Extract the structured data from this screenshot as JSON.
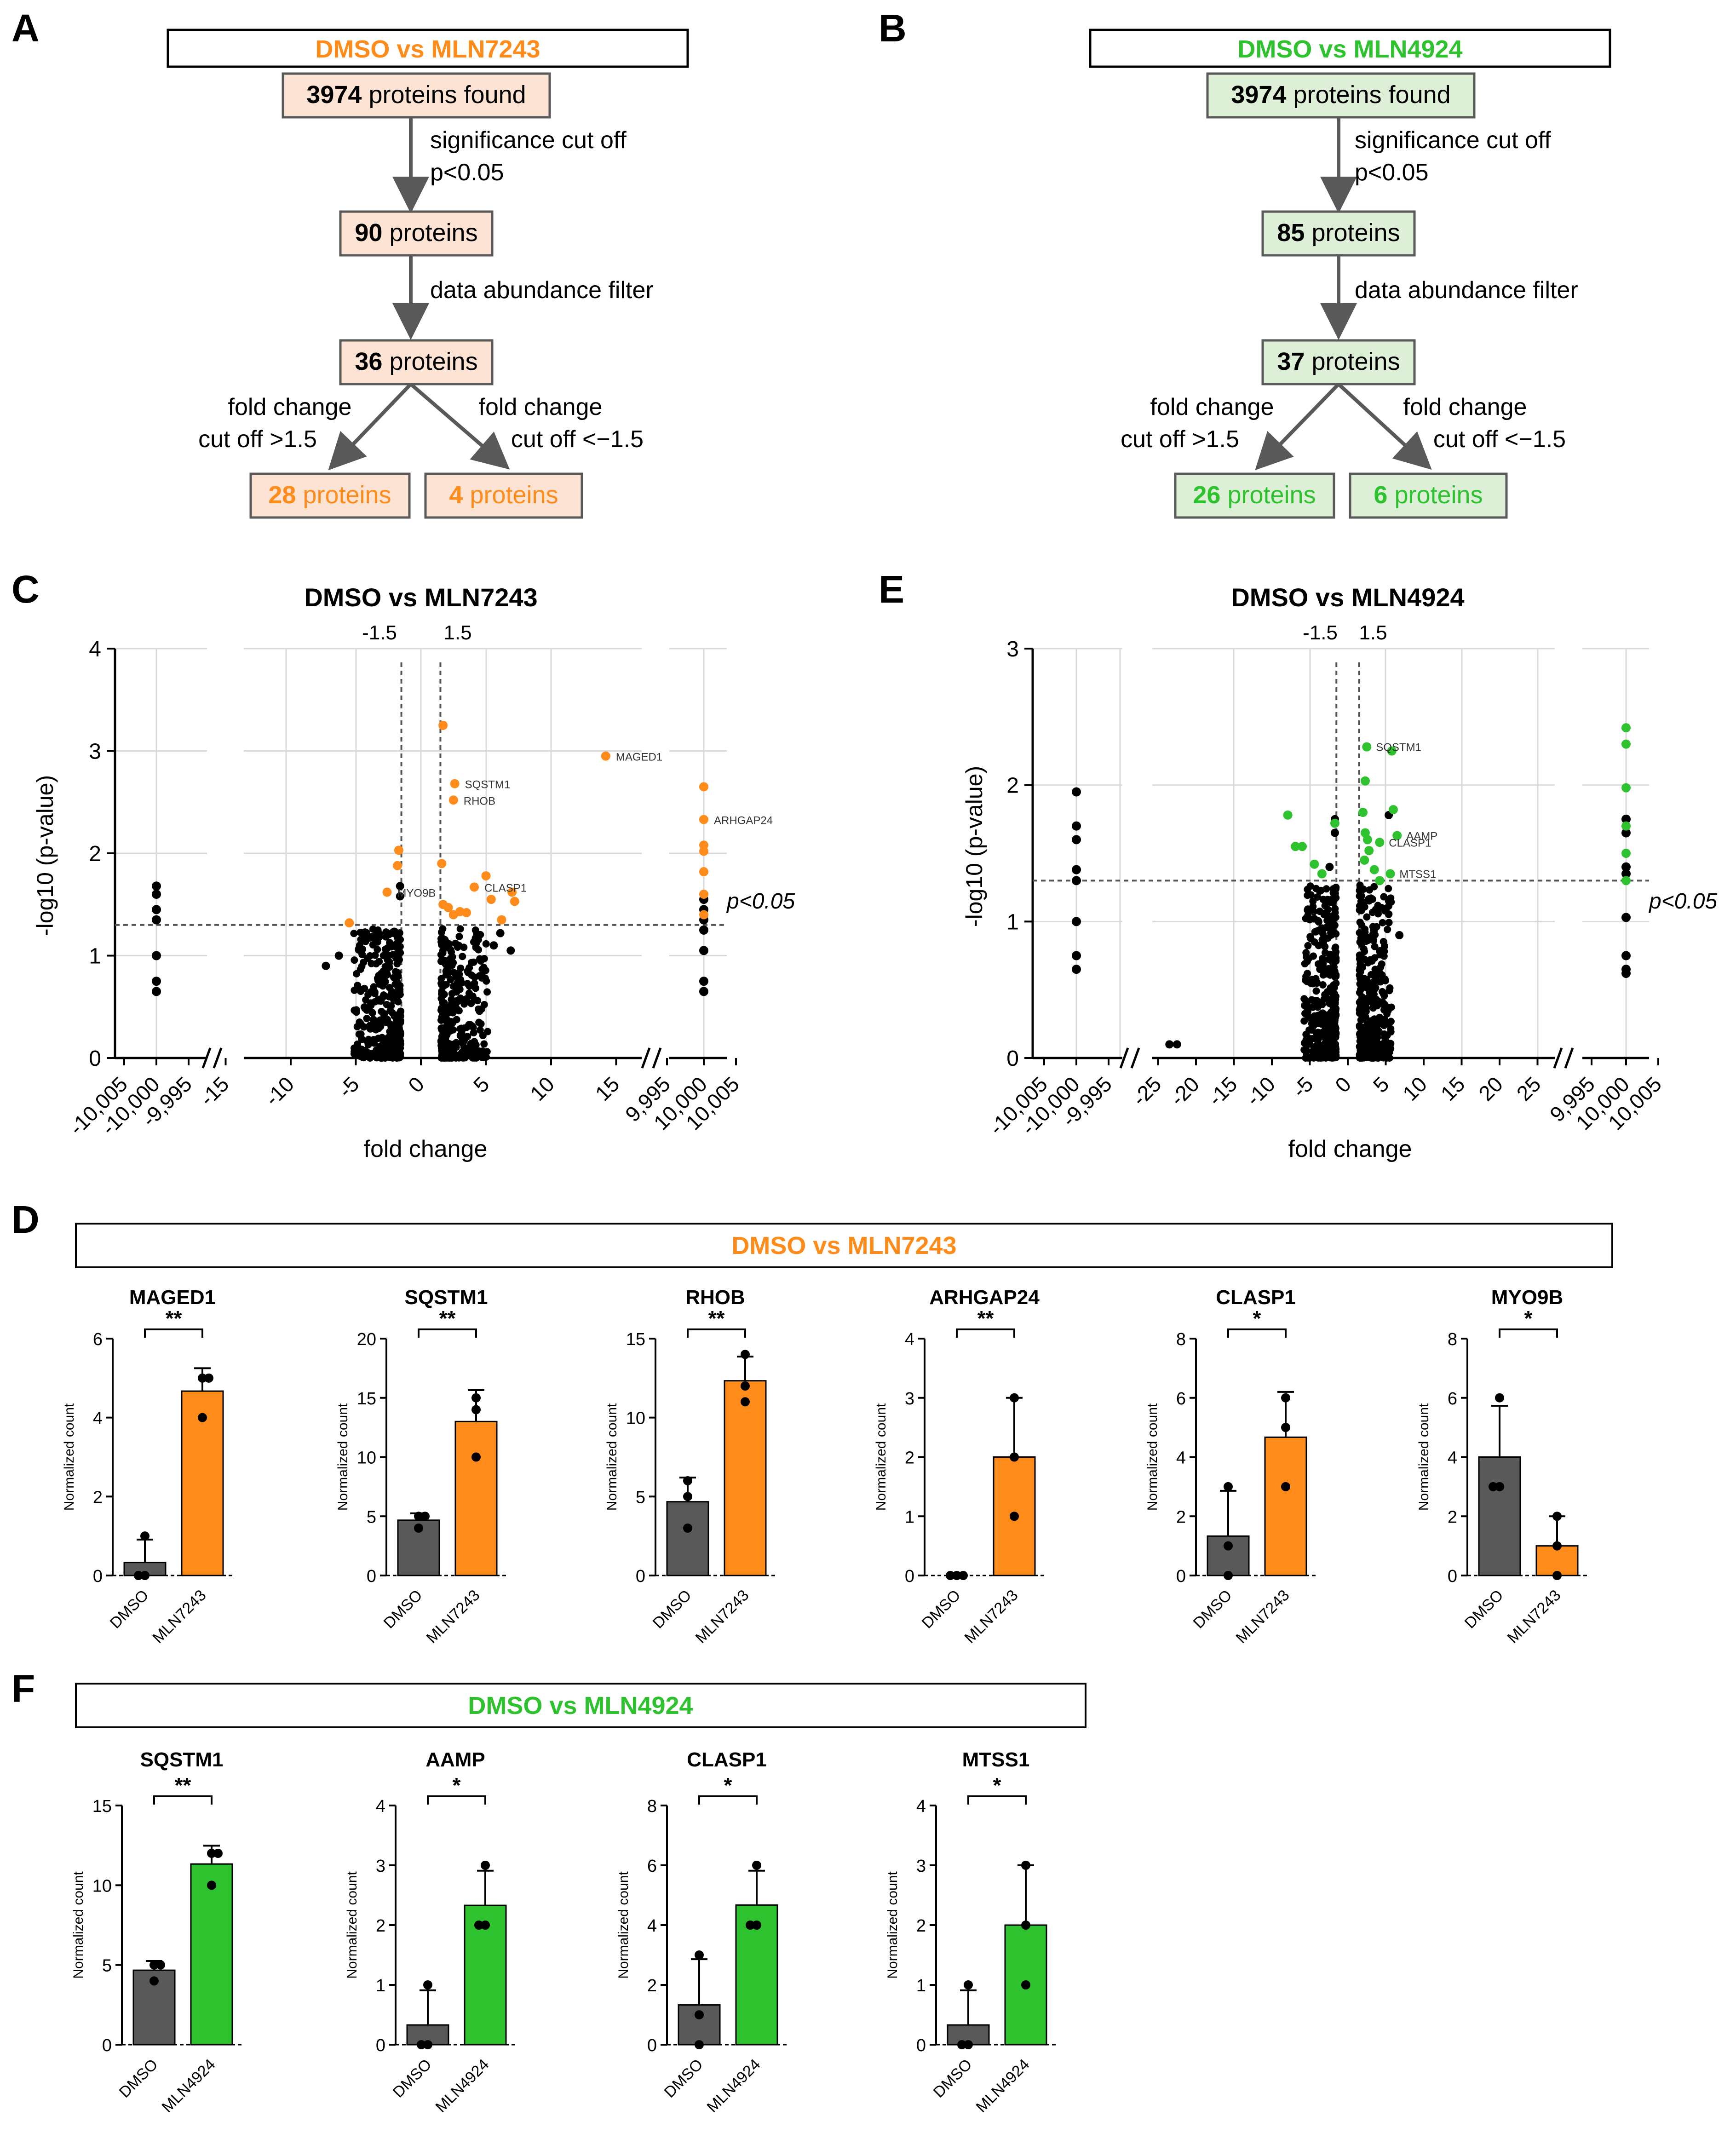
{
  "panel_letters": [
    "A",
    "B",
    "C",
    "D",
    "E",
    "F"
  ],
  "colors": {
    "orange": "#FF8C1A",
    "orange_fill": "#FDE3D3",
    "green": "#2EC22E",
    "green_fill": "#DDEFD6",
    "dark": "#595959",
    "black": "#000000"
  },
  "flow_a": {
    "title": "DMSO vs MLN7243",
    "found_num": "3974",
    "found_text": " proteins found",
    "step1_label_1": "significance cut off",
    "step1_label_2": "p<0.05",
    "n2_num": "90",
    "n2_text": " proteins",
    "step2_label": "data abundance filter",
    "n3_num": "36",
    "n3_text": " proteins",
    "left_label_1": "fold change",
    "left_label_2": "cut off >1.5",
    "right_label_1": "fold change",
    "right_label_2": "cut off <−1.5",
    "up_num": "28",
    "up_text": " proteins",
    "down_num": "4",
    "down_text": " proteins"
  },
  "flow_b": {
    "title": "DMSO vs MLN4924",
    "found_num": "3974",
    "found_text": " proteins found",
    "step1_label_1": "significance cut off",
    "step1_label_2": "p<0.05",
    "n2_num": "85",
    "n2_text": " proteins",
    "step2_label": "data abundance filter",
    "n3_num": "37",
    "n3_text": " proteins",
    "left_label_1": "fold change",
    "left_label_2": "cut off >1.5",
    "right_label_1": "fold change",
    "right_label_2": "cut off <−1.5",
    "up_num": "26",
    "up_text": " proteins",
    "down_num": "6",
    "down_text": " proteins"
  },
  "section_d_title": "DMSO vs MLN7243",
  "section_f_title": "DMSO vs MLN4924",
  "chart_data": [
    {
      "id": "C",
      "type": "scatter",
      "title": "DMSO vs MLN7243",
      "xlabel": "fold change",
      "ylabel": "-log10 (p-value)",
      "ylim": [
        0,
        4
      ],
      "yticks": [
        "0",
        "1",
        "2",
        "3",
        "4"
      ],
      "xticks_left": [
        "-10,005",
        "-10,000",
        "-9,995"
      ],
      "xticks_mid": [
        "-15",
        "-10",
        "-5",
        "0",
        "5",
        "10",
        "15"
      ],
      "xticks_right": [
        "9,995",
        "10,000",
        "10,005"
      ],
      "threshold_label": "p<0.05",
      "neg_cut_label": "-1.5",
      "pos_cut_label": "1.5",
      "labels": [
        {
          "text": "MAGED1",
          "x": 14.2,
          "y": 2.95
        },
        {
          "text": "SQSTM1",
          "x": 2.6,
          "y": 2.68
        },
        {
          "text": "RHOB",
          "x": 2.5,
          "y": 2.52
        },
        {
          "text": "ARHGAP24",
          "x": 10000,
          "y": 2.33
        },
        {
          "text": "CLASP1",
          "x": 4.1,
          "y": 1.67
        },
        {
          "text": "MYO9B",
          "x": -2.6,
          "y": 1.62
        }
      ]
    },
    {
      "id": "E",
      "type": "scatter",
      "title": "DMSO vs MLN4924",
      "xlabel": "fold change",
      "ylabel": "-log10 (p-value)",
      "ylim": [
        0,
        3
      ],
      "yticks": [
        "0",
        "1",
        "2",
        "3"
      ],
      "xticks_left": [
        "-10,005",
        "-10,000",
        "-9,995"
      ],
      "xticks_mid": [
        "-25",
        "-20",
        "-15",
        "-10",
        "-5",
        "0",
        "5",
        "10",
        "15",
        "20",
        "25"
      ],
      "xticks_right": [
        "9,995",
        "10,000",
        "10,005"
      ],
      "threshold_label": "p<0.05",
      "neg_cut_label": "-1.5",
      "pos_cut_label": "1.5",
      "labels": [
        {
          "text": "SQSTM1",
          "x": 2.5,
          "y": 2.28
        },
        {
          "text": "AAMP",
          "x": 6.5,
          "y": 1.63
        },
        {
          "text": "CLASP1",
          "x": 4.2,
          "y": 1.58
        },
        {
          "text": "MTSS1",
          "x": 5.6,
          "y": 1.35
        }
      ]
    },
    {
      "id": "D",
      "type": "bar",
      "ylabel": "Normalized count",
      "categories": [
        "DMSO",
        "MLN7243"
      ],
      "charts": [
        {
          "gene": "MAGED1",
          "ymax": 6,
          "yticks": [
            "0",
            "2",
            "4",
            "6"
          ],
          "means": [
            0.33,
            4.67
          ],
          "sd": [
            0.58,
            0.58
          ],
          "points": [
            [
              0,
              0,
              1
            ],
            [
              4,
              5,
              5
            ]
          ],
          "sig": "**"
        },
        {
          "gene": "SQSTM1",
          "ymax": 20,
          "yticks": [
            "0",
            "5",
            "10",
            "15",
            "20"
          ],
          "means": [
            4.67,
            13.0
          ],
          "sd": [
            0.58,
            2.65
          ],
          "points": [
            [
              4,
              5,
              5
            ],
            [
              10,
              14,
              15
            ]
          ],
          "sig": "**"
        },
        {
          "gene": "RHOB",
          "ymax": 15,
          "yticks": [
            "0",
            "5",
            "10",
            "15"
          ],
          "means": [
            4.67,
            12.33
          ],
          "sd": [
            1.53,
            1.53
          ],
          "points": [
            [
              3,
              5,
              6
            ],
            [
              11,
              12,
              14
            ]
          ],
          "sig": "**"
        },
        {
          "gene": "ARHGAP24",
          "ymax": 4,
          "yticks": [
            "0",
            "1",
            "2",
            "3",
            "4"
          ],
          "means": [
            0,
            2.0
          ],
          "sd": [
            0,
            1.0
          ],
          "points": [
            [
              0,
              0,
              0
            ],
            [
              1,
              2,
              3
            ]
          ],
          "sig": "**"
        },
        {
          "gene": "CLASP1",
          "ymax": 8,
          "yticks": [
            "0",
            "2",
            "4",
            "6",
            "8"
          ],
          "means": [
            1.33,
            4.67
          ],
          "sd": [
            1.53,
            1.53
          ],
          "points": [
            [
              0,
              1,
              3
            ],
            [
              3,
              5,
              6
            ]
          ],
          "sig": "*"
        },
        {
          "gene": "MYO9B",
          "ymax": 8,
          "yticks": [
            "0",
            "2",
            "4",
            "6",
            "8"
          ],
          "means": [
            4.0,
            1.0
          ],
          "sd": [
            1.73,
            1.0
          ],
          "points": [
            [
              3,
              3,
              6
            ],
            [
              0,
              1,
              2
            ]
          ],
          "sig": "*"
        }
      ]
    },
    {
      "id": "F",
      "type": "bar",
      "ylabel": "Normalized count",
      "categories": [
        "DMSO",
        "MLN4924"
      ],
      "charts": [
        {
          "gene": "SQSTM1",
          "ymax": 15,
          "yticks": [
            "0",
            "5",
            "10",
            "15"
          ],
          "means": [
            4.67,
            11.33
          ],
          "sd": [
            0.58,
            1.15
          ],
          "points": [
            [
              4,
              5,
              5
            ],
            [
              10,
              12,
              12
            ]
          ],
          "sig": "**"
        },
        {
          "gene": "AAMP",
          "ymax": 4,
          "yticks": [
            "0",
            "1",
            "2",
            "3",
            "4"
          ],
          "means": [
            0.33,
            2.33
          ],
          "sd": [
            0.58,
            0.58
          ],
          "points": [
            [
              0,
              0,
              1
            ],
            [
              2,
              2,
              3
            ]
          ],
          "sig": "*"
        },
        {
          "gene": "CLASP1",
          "ymax": 8,
          "yticks": [
            "0",
            "2",
            "4",
            "6",
            "8"
          ],
          "means": [
            1.33,
            4.67
          ],
          "sd": [
            1.53,
            1.15
          ],
          "points": [
            [
              0,
              1,
              3
            ],
            [
              4,
              4,
              6
            ]
          ],
          "sig": "*"
        },
        {
          "gene": "MTSS1",
          "ymax": 4,
          "yticks": [
            "0",
            "1",
            "2",
            "3",
            "4"
          ],
          "means": [
            0.33,
            2.0
          ],
          "sd": [
            0.58,
            1.0
          ],
          "points": [
            [
              0,
              0,
              1
            ],
            [
              1,
              2,
              3
            ]
          ],
          "sig": "*"
        }
      ]
    }
  ]
}
